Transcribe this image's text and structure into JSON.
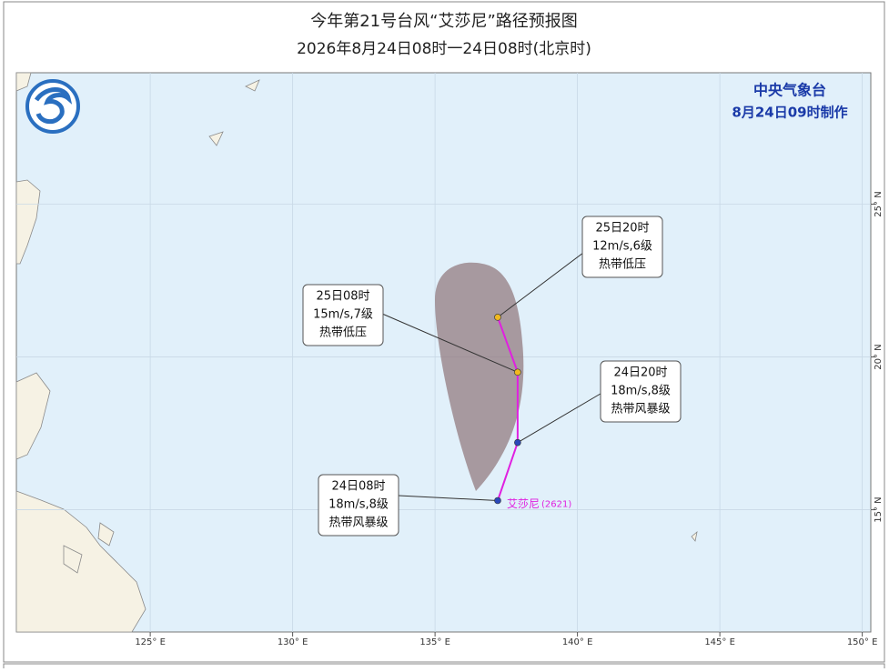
{
  "header": {
    "title": "今年第21号台风“艾莎尼”路径预报图",
    "subtitle": "2026年8月24日08时一24日08时(北京时)"
  },
  "agency": {
    "name": "中央气象台",
    "issued": "8月24日09时制作"
  },
  "map": {
    "xlim": [
      120.3,
      150.3
    ],
    "ylim": [
      11,
      29.3
    ],
    "xticks": [
      {
        "value": 125,
        "label": "125° E"
      },
      {
        "value": 130,
        "label": "130° E"
      },
      {
        "value": 135,
        "label": "135° E"
      },
      {
        "value": 140,
        "label": "140° E"
      },
      {
        "value": 145,
        "label": "145° E"
      },
      {
        "value": 150,
        "label": "150° E"
      }
    ],
    "yticks": [
      {
        "value": 15,
        "label": "15° N"
      },
      {
        "value": 20,
        "label": "20° N"
      },
      {
        "value": 25,
        "label": "25° N"
      }
    ],
    "track_color": "#e020e0",
    "storm_name": "艾莎尼",
    "storm_id": "(2621)",
    "points": [
      {
        "lon": 137.2,
        "lat": 15.3,
        "color": "#2a48b8",
        "time": "24日08时",
        "wind": "18m/s,8级",
        "level": "热带风暴级"
      },
      {
        "lon": 137.9,
        "lat": 17.2,
        "color": "#2a48b8",
        "time": "24日20时",
        "wind": "18m/s,8级",
        "level": "热带风暴级"
      },
      {
        "lon": 137.9,
        "lat": 19.5,
        "color": "#f0b820",
        "time": "25日08时",
        "wind": "15m/s,7级",
        "level": "热带低压"
      },
      {
        "lon": 137.2,
        "lat": 21.3,
        "color": "#f0b820",
        "time": "25日20时",
        "wind": "12m/s,6级",
        "level": "热带低压"
      }
    ]
  }
}
